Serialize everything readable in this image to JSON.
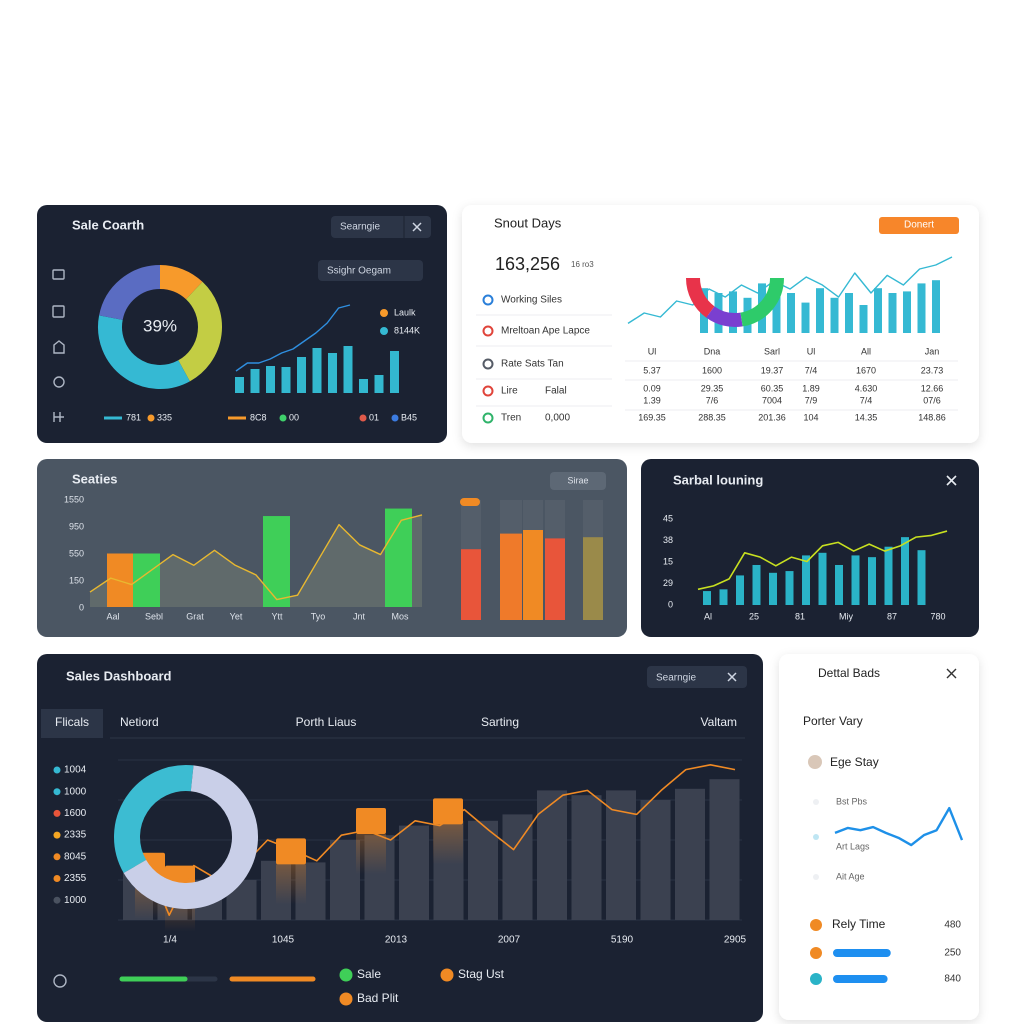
{
  "panels": [
    {
      "title": "Sale Coarth",
      "search": "Searngie",
      "button": "Ssighr Oegam",
      "donut": {
        "center": "39%",
        "values": [
          12,
          30,
          36,
          22
        ],
        "colors": [
          "#f79a2b",
          "#c3cd44",
          "#35b9d3",
          "#5a6cc2"
        ]
      },
      "bars": {
        "values": [
          16,
          24,
          27,
          26,
          36,
          45,
          40,
          47,
          14,
          18,
          42
        ],
        "color": "#33b8cf"
      },
      "line": {
        "values": [
          22,
          30,
          30,
          34,
          40,
          44,
          52,
          60,
          70,
          85,
          88
        ],
        "color": "#2f8fe0"
      },
      "legend": [
        {
          "label": "Laulk",
          "color": "#f79a2b"
        },
        {
          "label": "8144K",
          "color": "#35b9d3"
        }
      ],
      "footer": [
        {
          "label": "781",
          "color": "#35b9d3"
        },
        {
          "label": "335",
          "color": "#f79a2b"
        },
        {
          "label": "8C8",
          "color": "#f79a2b"
        },
        {
          "label": "00",
          "color": "#3fd06b"
        },
        {
          "label": "01",
          "color": "#e05a4a"
        },
        {
          "label": "B45",
          "color": "#3b7be0"
        }
      ]
    },
    {
      "title": "Snout Days",
      "button": "Donert",
      "total": "163,256",
      "total_note": "16 ro3",
      "list": [
        {
          "label": "Working Siles",
          "color": "#2a7fd9"
        },
        {
          "label": "Mreltoan Ape Lapce",
          "color": "#e0443a"
        },
        {
          "label": "Rate Sats Tan",
          "color": "#555b66"
        },
        {
          "label": "Lire",
          "value": "Falal",
          "color": "#e0443a"
        },
        {
          "label": "Tren",
          "value": "0,000",
          "color": "#2fb36a"
        }
      ],
      "arc": {
        "values": [
          30,
          25,
          45
        ],
        "colors": [
          "#e8334a",
          "#7a3fd0",
          "#2ecb6a"
        ]
      },
      "bars": {
        "values": [
          56,
          50,
          52,
          44,
          62,
          56,
          50,
          38,
          56,
          44,
          50,
          35,
          56,
          50,
          52,
          62,
          66
        ],
        "color": "#35b9d3"
      },
      "line": {
        "values": [
          12,
          25,
          20,
          40,
          35,
          55,
          45,
          60,
          50,
          65,
          55,
          70,
          60,
          45,
          75,
          50,
          72,
          60,
          80,
          85,
          95
        ],
        "color": "#35b9d3"
      },
      "table": {
        "header": [
          "Ul",
          "Dna",
          "Sarl",
          "Ul",
          "All",
          "Jan"
        ],
        "rows": [
          [
            "5.37",
            "1600",
            "19.37",
            "7/4",
            "1670",
            "23.73"
          ],
          [
            "0.09",
            "29.35",
            "60.35",
            "1.89",
            "4.630",
            "12.66"
          ],
          [
            "1.39",
            "7/6",
            "7004",
            "7/9",
            "7/4",
            "07/6"
          ],
          [
            "169.35",
            "288.35",
            "201.36",
            "104",
            "14.35",
            "148.86"
          ]
        ]
      }
    },
    {
      "title": "Seaties",
      "button": "Sirae",
      "y_labels": [
        "1550",
        "950",
        "550",
        "150",
        "0"
      ],
      "x_labels": [
        "Aal",
        "Sebl",
        "Grat",
        "Yet",
        "Ytt",
        "Tyo",
        "Jnt",
        "Mos"
      ],
      "bars": [
        {
          "value": 50,
          "color": "#f08a24"
        },
        {
          "value": 50,
          "color": "#3fcf58"
        },
        {
          "value": 85,
          "color": "#3fcf58"
        },
        {
          "value": 92,
          "color": "#3fcf58"
        }
      ],
      "line": {
        "values": [
          14,
          27,
          21,
          35,
          49,
          39,
          53,
          39,
          30,
          7,
          11,
          44,
          77,
          58,
          49,
          81,
          86
        ],
        "color": "#e8b830"
      },
      "columns": {
        "values": [
          59,
          72,
          75,
          68,
          69
        ],
        "colors": [
          "#e8553a",
          "#ef7a2a",
          "#f08a24",
          "#e8553a",
          "#9a8a4a"
        ]
      }
    },
    {
      "title": "Sarbal louning",
      "y_labels": [
        "45",
        "38",
        "15",
        "29",
        "0"
      ],
      "x_labels": [
        "Al",
        "25",
        "81",
        "Miy",
        "87",
        "780"
      ],
      "bars": {
        "values": [
          16,
          18,
          34,
          46,
          37,
          39,
          57,
          60,
          46,
          57,
          55,
          67,
          78,
          63
        ],
        "color": "#2ab3c7"
      },
      "line": {
        "values": [
          18,
          22,
          30,
          60,
          55,
          45,
          55,
          50,
          68,
          72,
          62,
          70,
          62,
          68,
          78,
          80,
          85
        ],
        "color": "#c8e020"
      }
    },
    {
      "title": "Sales Dashboard",
      "search": "Searngie",
      "tabs": [
        "Flicals",
        "Netiord",
        "Porth Liaus",
        "Sarting",
        "Valtam"
      ],
      "legend": [
        {
          "label": "1004",
          "color": "#35b9d3"
        },
        {
          "label": "1000",
          "color": "#35b9d3"
        },
        {
          "label": "1600",
          "color": "#e8553a"
        },
        {
          "label": "2335",
          "color": "#f5a623"
        },
        {
          "label": "8045",
          "color": "#f08a24"
        },
        {
          "label": "2355",
          "color": "#f08a24"
        },
        {
          "label": "1000",
          "color": "#4a5260"
        }
      ],
      "x_labels": [
        "1/4",
        "1045",
        "2013",
        "2007",
        "5190",
        "2905"
      ],
      "bars": {
        "values": [
          34,
          28,
          25,
          25,
          37,
          36,
          50,
          53,
          59,
          62,
          62,
          66,
          81,
          78,
          81,
          75,
          82,
          88
        ],
        "color": "#3b4150"
      },
      "line": {
        "values": [
          44,
          40,
          3,
          34,
          25,
          34,
          50,
          44,
          37,
          53,
          56,
          50,
          62,
          59,
          69,
          56,
          44,
          66,
          78,
          81,
          69,
          66,
          81,
          94,
          97,
          94
        ],
        "color": "#f08a24"
      },
      "highlights": {
        "values": [
          42,
          34,
          51,
          70,
          76
        ],
        "color": "#f08a24"
      },
      "donut": {
        "values": [
          35,
          65
        ],
        "colors": [
          "#3cbcd2",
          "#c9cfe8"
        ]
      },
      "series": [
        {
          "name": "Sale",
          "color": "#3fcf58"
        },
        {
          "name": "Stag Ust",
          "color": "#f08a24"
        },
        {
          "name": "Bad Plit",
          "color": "#f08a24"
        }
      ]
    },
    {
      "title": "Dettal Bads",
      "subtitle": "Porter Vary",
      "user": "Ege Stay",
      "series_labels": [
        "Bst Pbs",
        "Art Lags",
        "Ait Age"
      ],
      "spark": {
        "values": [
          38,
          49,
          44,
          51,
          38,
          27,
          11,
          33,
          44,
          93,
          22
        ],
        "color": "#1e90e8"
      },
      "rows": [
        {
          "label": "Rely Time",
          "value": "480",
          "color": "#f08a24"
        },
        {
          "value": "250",
          "bar": 55,
          "color": "#f08a24"
        },
        {
          "value": "840",
          "bar": 52,
          "color": "#2ab3c7"
        }
      ]
    }
  ]
}
